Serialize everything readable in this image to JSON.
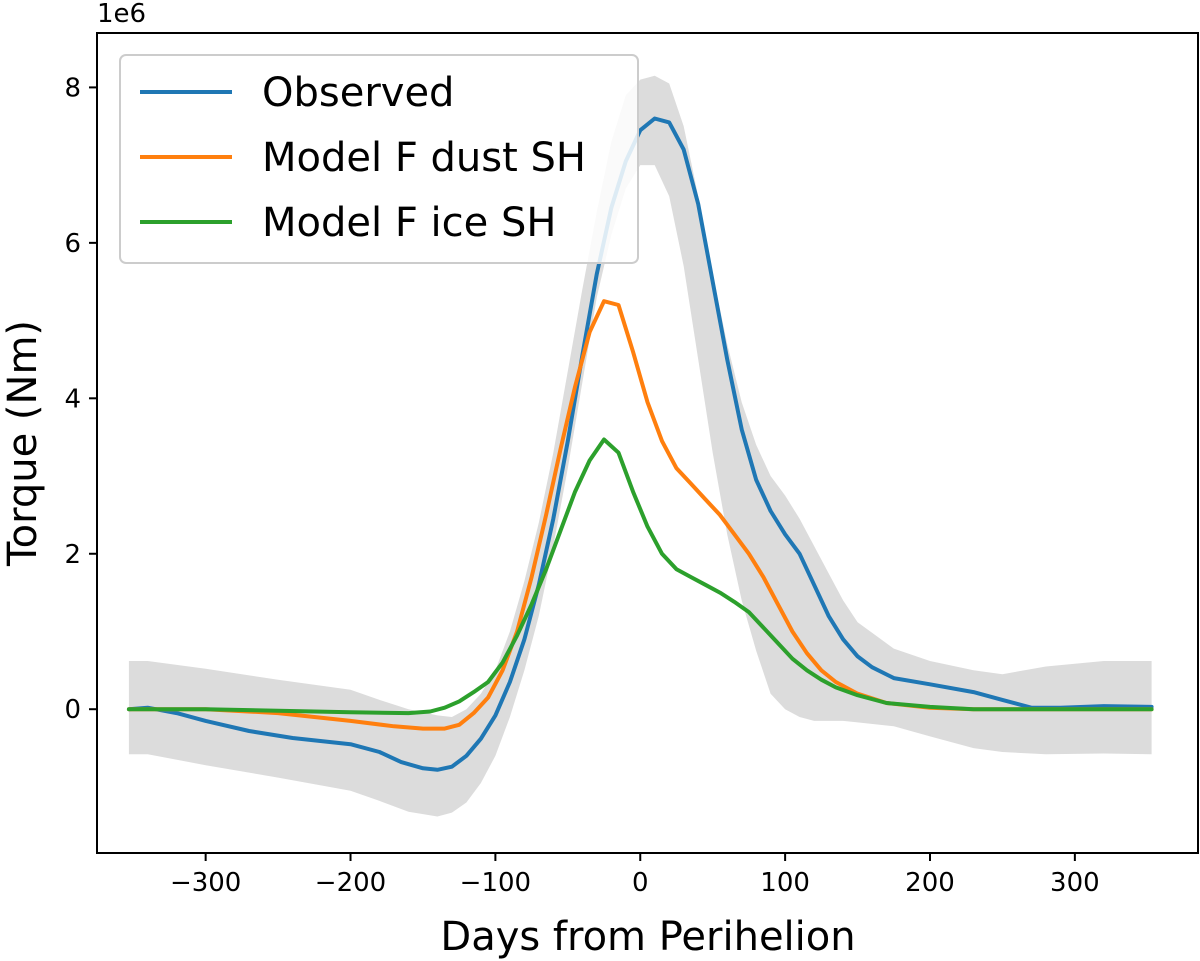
{
  "chart_data": {
    "type": "line",
    "title": "",
    "xlabel": "Days from Perihelion",
    "ylabel": "Torque (Nm)",
    "y_offset_label": "1e6",
    "xlim": [
      -375,
      385
    ],
    "ylim": [
      -1.85,
      8.7
    ],
    "y_scale": 1000000,
    "xticks": [
      -300,
      -200,
      -100,
      0,
      100,
      200,
      300
    ],
    "xtick_labels": [
      "−300",
      "−200",
      "−100",
      "0",
      "100",
      "200",
      "300"
    ],
    "yticks": [
      0,
      2,
      4,
      6,
      8
    ],
    "ytick_labels": [
      "0",
      "2",
      "4",
      "6",
      "8"
    ],
    "grid": false,
    "legend_position": "top-left",
    "uncertainty_band": {
      "color": "#dcdcdc",
      "x": [
        -353,
        -340,
        -300,
        -250,
        -200,
        -180,
        -160,
        -140,
        -130,
        -120,
        -110,
        -100,
        -90,
        -80,
        -70,
        -60,
        -50,
        -40,
        -30,
        -20,
        -10,
        0,
        10,
        20,
        30,
        40,
        50,
        60,
        70,
        80,
        90,
        100,
        110,
        120,
        130,
        140,
        150,
        175,
        200,
        230,
        250,
        280,
        320,
        353
      ],
      "lower": [
        -0.58,
        -0.58,
        -0.72,
        -0.88,
        -1.05,
        -1.18,
        -1.32,
        -1.38,
        -1.33,
        -1.2,
        -0.95,
        -0.6,
        -0.1,
        0.5,
        1.2,
        2.1,
        3.1,
        4.2,
        5.3,
        6.1,
        6.7,
        7.0,
        7.0,
        6.6,
        5.7,
        4.5,
        3.3,
        2.25,
        1.4,
        0.75,
        0.2,
        0.0,
        -0.1,
        -0.15,
        -0.15,
        -0.15,
        -0.17,
        -0.22,
        -0.35,
        -0.5,
        -0.55,
        -0.58,
        -0.57,
        -0.58
      ],
      "upper": [
        0.62,
        0.62,
        0.52,
        0.38,
        0.25,
        0.12,
        0.0,
        -0.08,
        -0.1,
        0.0,
        0.2,
        0.5,
        1.0,
        1.65,
        2.4,
        3.3,
        4.35,
        5.4,
        6.4,
        7.3,
        7.9,
        8.1,
        8.15,
        8.05,
        7.5,
        6.6,
        5.6,
        4.7,
        3.95,
        3.4,
        3.0,
        2.75,
        2.45,
        2.1,
        1.75,
        1.4,
        1.12,
        0.78,
        0.62,
        0.5,
        0.45,
        0.55,
        0.62,
        0.62
      ]
    },
    "series": [
      {
        "name": "Observed",
        "color": "#1f77b4",
        "x": [
          -353,
          -340,
          -320,
          -300,
          -270,
          -240,
          -200,
          -180,
          -165,
          -150,
          -140,
          -130,
          -120,
          -110,
          -100,
          -90,
          -80,
          -70,
          -60,
          -50,
          -40,
          -30,
          -20,
          -10,
          0,
          10,
          20,
          30,
          40,
          50,
          60,
          70,
          80,
          90,
          100,
          110,
          120,
          130,
          140,
          150,
          160,
          175,
          200,
          230,
          250,
          270,
          290,
          320,
          353
        ],
        "y": [
          0.0,
          0.02,
          -0.05,
          -0.15,
          -0.28,
          -0.37,
          -0.45,
          -0.55,
          -0.68,
          -0.76,
          -0.78,
          -0.74,
          -0.6,
          -0.38,
          -0.08,
          0.35,
          0.9,
          1.6,
          2.45,
          3.45,
          4.55,
          5.6,
          6.45,
          7.05,
          7.45,
          7.6,
          7.55,
          7.2,
          6.5,
          5.5,
          4.5,
          3.6,
          2.95,
          2.55,
          2.25,
          2.0,
          1.6,
          1.2,
          0.9,
          0.68,
          0.54,
          0.4,
          0.32,
          0.22,
          0.12,
          0.02,
          0.02,
          0.04,
          0.03
        ]
      },
      {
        "name": "Model F dust SH",
        "color": "#ff7f0e",
        "x": [
          -353,
          -300,
          -250,
          -200,
          -170,
          -150,
          -135,
          -125,
          -115,
          -105,
          -95,
          -85,
          -75,
          -65,
          -55,
          -45,
          -35,
          -25,
          -15,
          -5,
          5,
          15,
          25,
          35,
          45,
          55,
          65,
          75,
          85,
          95,
          105,
          115,
          125,
          135,
          150,
          170,
          200,
          230,
          260,
          300,
          353
        ],
        "y": [
          0.0,
          0.0,
          -0.05,
          -0.15,
          -0.22,
          -0.25,
          -0.25,
          -0.2,
          -0.05,
          0.15,
          0.5,
          1.0,
          1.7,
          2.5,
          3.35,
          4.15,
          4.85,
          5.25,
          5.2,
          4.6,
          3.95,
          3.45,
          3.1,
          2.9,
          2.7,
          2.5,
          2.25,
          2.0,
          1.7,
          1.35,
          1.0,
          0.72,
          0.5,
          0.35,
          0.2,
          0.08,
          0.02,
          0.0,
          0.0,
          0.0,
          0.0
        ]
      },
      {
        "name": "Model F ice SH",
        "color": "#2ca02c",
        "x": [
          -353,
          -300,
          -250,
          -200,
          -160,
          -145,
          -135,
          -125,
          -115,
          -105,
          -95,
          -85,
          -75,
          -65,
          -55,
          -45,
          -35,
          -25,
          -15,
          -5,
          5,
          15,
          25,
          35,
          45,
          55,
          65,
          75,
          85,
          95,
          105,
          115,
          125,
          135,
          150,
          170,
          200,
          230,
          260,
          300,
          353
        ],
        "y": [
          0.0,
          0.0,
          -0.02,
          -0.04,
          -0.05,
          -0.03,
          0.02,
          0.1,
          0.22,
          0.35,
          0.6,
          0.95,
          1.35,
          1.8,
          2.3,
          2.8,
          3.2,
          3.47,
          3.3,
          2.8,
          2.35,
          2.0,
          1.8,
          1.7,
          1.6,
          1.5,
          1.38,
          1.25,
          1.05,
          0.85,
          0.65,
          0.5,
          0.38,
          0.28,
          0.18,
          0.08,
          0.03,
          0.0,
          0.0,
          0.0,
          0.0
        ]
      }
    ]
  }
}
